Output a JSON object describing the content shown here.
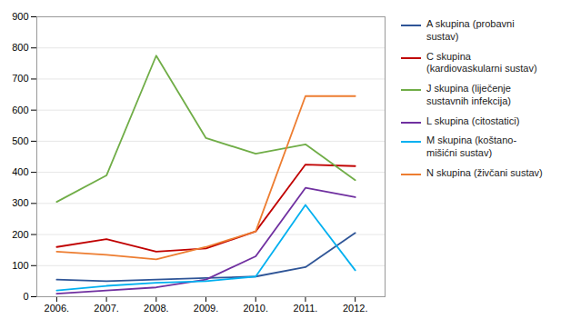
{
  "chart_data": {
    "type": "line",
    "x": [
      2006,
      2007,
      2008,
      2009,
      2010,
      2011,
      2012
    ],
    "series": [
      {
        "name": "A skupina (probavni\nsustav)",
        "color": "#2F5597",
        "values": [
          55,
          50,
          55,
          60,
          65,
          95,
          205
        ]
      },
      {
        "name": "C skupina\n(kardiovaskularni sustav)",
        "color": "#C00000",
        "values": [
          160,
          185,
          145,
          155,
          210,
          425,
          420
        ]
      },
      {
        "name": "J skupina (liječenje\nsustavnih infekcija)",
        "color": "#70AD47",
        "values": [
          305,
          390,
          775,
          510,
          460,
          490,
          375
        ]
      },
      {
        "name": "L skupina (citostatici)",
        "color": "#7030A0",
        "values": [
          10,
          20,
          30,
          55,
          130,
          350,
          320
        ]
      },
      {
        "name": "M skupina (koštano-\nmišićni sustav)",
        "color": "#00B0F0",
        "values": [
          20,
          35,
          45,
          50,
          65,
          295,
          85
        ]
      },
      {
        "name": "N skupina (živčani sustav)",
        "color": "#ED7D31",
        "values": [
          145,
          135,
          120,
          160,
          210,
          645,
          645
        ]
      }
    ],
    "xlim": [
      2005.6,
      2012.6
    ],
    "xticks": [
      {
        "value": 2006,
        "label": "2006."
      },
      {
        "value": 2007,
        "label": "2007."
      },
      {
        "value": 2008,
        "label": "2008."
      },
      {
        "value": 2009,
        "label": "2009."
      },
      {
        "value": 2010,
        "label": "2010."
      },
      {
        "value": 2011,
        "label": "2011."
      },
      {
        "value": 2012,
        "label": "2012."
      }
    ],
    "ylim": [
      0,
      900
    ],
    "yticks": [
      0,
      100,
      200,
      300,
      400,
      500,
      600,
      700,
      800,
      900
    ],
    "grid": true,
    "legend": "right"
  }
}
